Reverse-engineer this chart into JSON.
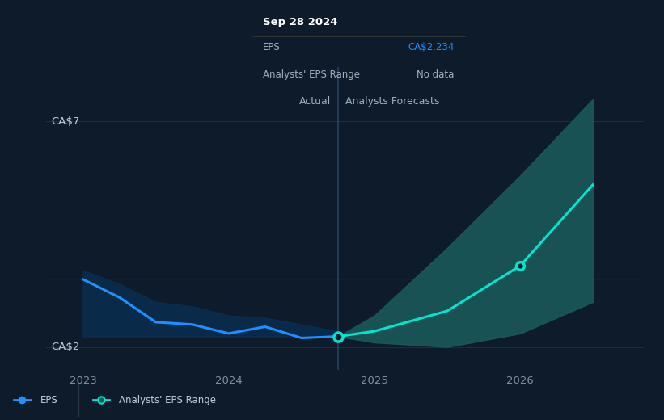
{
  "background_color": "#0d1b2a",
  "plot_bg_color": "#0d1b2a",
  "tooltip_title": "Sep 28 2024",
  "tooltip_eps": "CA$2.234",
  "tooltip_range": "No data",
  "ylabel_top": "CA$7",
  "ylabel_bottom": "CA$2",
  "actual_label": "Actual",
  "forecast_label": "Analysts Forecasts",
  "eps_color": "#1e90ff",
  "forecast_line_color": "#00e5cc",
  "forecast_band_color": "#1a5c5c",
  "actual_shade_color": "#0a2d50",
  "grid_color": "#1e2d40",
  "text_color": "#a0b0c0",
  "label_color": "#c0ccd8",
  "tick_label_color": "#8090a0",
  "tooltip_bg": "#000000",
  "tooltip_border": "#333333",
  "legend_border": "#2a3a4a"
}
